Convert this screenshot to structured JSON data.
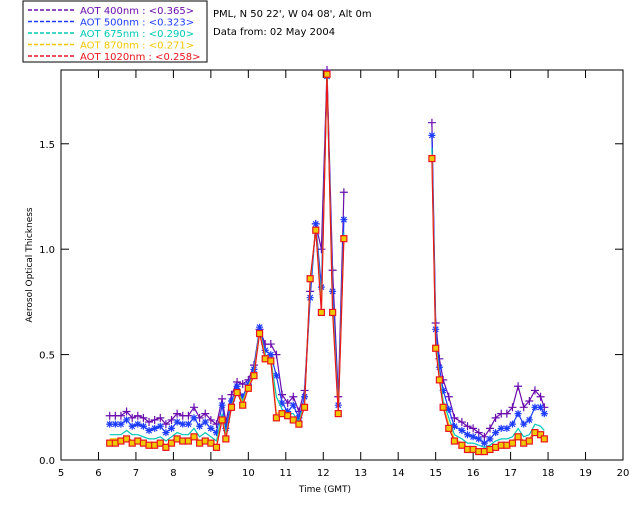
{
  "chart_data": {
    "type": "line",
    "info": {
      "location": "PML, N 50 22', W 04 08', Alt 0m",
      "date": "Data from: 02 May 2004"
    },
    "xlabel": "Time (GMT)",
    "ylabel": "Aerosol Optical Thickness",
    "xlim": [
      5,
      20
    ],
    "ylim": [
      0,
      1.85
    ],
    "xticks": [
      "5",
      "6",
      "7",
      "8",
      "9",
      "10",
      "11",
      "12",
      "13",
      "14",
      "15",
      "16",
      "17",
      "18",
      "19",
      "20"
    ],
    "yticks": [
      "0.0",
      "0.5",
      "1.0",
      "1.5"
    ],
    "legend_position": "top-left, outside plot",
    "series": [
      {
        "name": "AOT  400nm : <0.365>",
        "color": "#6a0dad",
        "marker": "plus",
        "x": [
          6.3,
          6.45,
          6.6,
          6.75,
          6.9,
          7.05,
          7.2,
          7.35,
          7.5,
          7.65,
          7.8,
          7.95,
          8.1,
          8.25,
          8.4,
          8.55,
          8.7,
          8.85,
          9.0,
          9.15,
          9.3,
          9.4,
          9.55,
          9.7,
          9.85,
          10.0,
          10.15,
          10.3,
          10.45,
          10.6,
          10.75,
          10.9,
          11.05,
          11.2,
          11.35,
          11.5,
          11.65,
          11.8,
          11.95,
          12.1,
          12.25,
          12.4,
          12.55,
          14.9,
          15.0,
          15.1,
          15.2,
          15.35,
          15.5,
          15.7,
          15.85,
          16.0,
          16.15,
          16.3,
          16.45,
          16.6,
          16.75,
          16.9,
          17.05,
          17.2,
          17.35,
          17.5,
          17.65,
          17.8,
          17.9
        ],
        "y": [
          0.21,
          0.21,
          0.21,
          0.23,
          0.2,
          0.21,
          0.2,
          0.18,
          0.19,
          0.2,
          0.17,
          0.19,
          0.22,
          0.21,
          0.21,
          0.25,
          0.2,
          0.22,
          0.19,
          0.17,
          0.29,
          0.18,
          0.31,
          0.37,
          0.36,
          0.38,
          0.45,
          0.62,
          0.55,
          0.55,
          0.5,
          0.31,
          0.27,
          0.3,
          0.23,
          0.33,
          0.8,
          1.12,
          1.0,
          1.85,
          0.9,
          0.3,
          1.27,
          1.6,
          0.65,
          0.48,
          0.38,
          0.3,
          0.2,
          0.18,
          0.16,
          0.15,
          0.13,
          0.11,
          0.15,
          0.2,
          0.22,
          0.22,
          0.25,
          0.35,
          0.25,
          0.28,
          0.33,
          0.3,
          0.25
        ]
      },
      {
        "name": "AOT  500nm : <0.323>",
        "color": "#1e3cff",
        "marker": "star",
        "x": [
          6.3,
          6.45,
          6.6,
          6.75,
          6.9,
          7.05,
          7.2,
          7.35,
          7.5,
          7.65,
          7.8,
          7.95,
          8.1,
          8.25,
          8.4,
          8.55,
          8.7,
          8.85,
          9.0,
          9.15,
          9.3,
          9.4,
          9.55,
          9.7,
          9.85,
          10.0,
          10.15,
          10.3,
          10.45,
          10.6,
          10.75,
          10.9,
          11.05,
          11.2,
          11.35,
          11.5,
          11.65,
          11.8,
          11.95,
          12.1,
          12.25,
          12.4,
          12.55,
          14.9,
          15.0,
          15.1,
          15.2,
          15.35,
          15.5,
          15.7,
          15.85,
          16.0,
          16.15,
          16.3,
          16.45,
          16.6,
          16.75,
          16.9,
          17.05,
          17.2,
          17.35,
          17.5,
          17.65,
          17.8,
          17.9
        ],
        "y": [
          0.17,
          0.17,
          0.17,
          0.19,
          0.16,
          0.17,
          0.16,
          0.14,
          0.15,
          0.16,
          0.13,
          0.15,
          0.18,
          0.17,
          0.17,
          0.2,
          0.16,
          0.18,
          0.15,
          0.13,
          0.26,
          0.15,
          0.28,
          0.35,
          0.3,
          0.36,
          0.43,
          0.63,
          0.52,
          0.5,
          0.4,
          0.27,
          0.23,
          0.26,
          0.2,
          0.3,
          0.77,
          1.12,
          0.82,
          1.82,
          0.8,
          0.26,
          1.14,
          1.54,
          0.62,
          0.44,
          0.33,
          0.24,
          0.16,
          0.14,
          0.12,
          0.11,
          0.1,
          0.08,
          0.1,
          0.13,
          0.15,
          0.15,
          0.17,
          0.22,
          0.17,
          0.19,
          0.25,
          0.25,
          0.22
        ]
      },
      {
        "name": "AOT  675nm : <0.290>",
        "color": "#00c8b4",
        "marker": "none",
        "x": [
          6.3,
          6.45,
          6.6,
          6.75,
          6.9,
          7.05,
          7.2,
          7.35,
          7.5,
          7.65,
          7.8,
          7.95,
          8.1,
          8.25,
          8.4,
          8.55,
          8.7,
          8.85,
          9.0,
          9.15,
          9.3,
          9.4,
          9.55,
          9.7,
          9.85,
          10.0,
          10.15,
          10.3,
          10.45,
          10.6,
          10.75,
          10.9,
          11.05,
          11.2,
          11.35,
          11.5,
          11.65,
          11.8,
          11.95,
          12.1,
          12.25,
          12.4,
          12.55,
          14.9,
          15.0,
          15.1,
          15.2,
          15.35,
          15.5,
          15.7,
          15.85,
          16.0,
          16.15,
          16.3,
          16.45,
          16.6,
          16.75,
          16.9,
          17.05,
          17.2,
          17.35,
          17.5,
          17.65,
          17.8,
          17.9
        ],
        "y": [
          0.12,
          0.12,
          0.12,
          0.14,
          0.12,
          0.12,
          0.11,
          0.1,
          0.1,
          0.11,
          0.09,
          0.11,
          0.13,
          0.12,
          0.12,
          0.15,
          0.11,
          0.13,
          0.11,
          0.09,
          0.22,
          0.12,
          0.26,
          0.33,
          0.28,
          0.35,
          0.42,
          0.61,
          0.5,
          0.48,
          0.3,
          0.24,
          0.22,
          0.22,
          0.18,
          0.27,
          0.83,
          1.1,
          0.75,
          1.82,
          0.75,
          0.24,
          1.08,
          1.48,
          0.57,
          0.4,
          0.28,
          0.2,
          0.12,
          0.1,
          0.08,
          0.08,
          0.07,
          0.06,
          0.07,
          0.09,
          0.1,
          0.1,
          0.11,
          0.15,
          0.11,
          0.12,
          0.17,
          0.16,
          0.14
        ]
      },
      {
        "name": "AOT  870nm : <0.271>",
        "color": "#f0c800",
        "marker": "none",
        "x": [
          6.3,
          6.45,
          6.6,
          6.75,
          6.9,
          7.05,
          7.2,
          7.35,
          7.5,
          7.65,
          7.8,
          7.95,
          8.1,
          8.25,
          8.4,
          8.55,
          8.7,
          8.85,
          9.0,
          9.15,
          9.3,
          9.4,
          9.55,
          9.7,
          9.85,
          10.0,
          10.15,
          10.3,
          10.45,
          10.6,
          10.75,
          10.9,
          11.05,
          11.2,
          11.35,
          11.5,
          11.65,
          11.8,
          11.95,
          12.1,
          12.25,
          12.4,
          12.55,
          14.9,
          15.0,
          15.1,
          15.2,
          15.35,
          15.5,
          15.7,
          15.85,
          16.0,
          16.15,
          16.3,
          16.45,
          16.6,
          16.75,
          16.9,
          17.05,
          17.2,
          17.35,
          17.5,
          17.65,
          17.8,
          17.9
        ],
        "y": [
          0.1,
          0.1,
          0.1,
          0.11,
          0.09,
          0.1,
          0.09,
          0.08,
          0.08,
          0.09,
          0.07,
          0.09,
          0.11,
          0.1,
          0.1,
          0.12,
          0.09,
          0.1,
          0.09,
          0.07,
          0.2,
          0.11,
          0.25,
          0.33,
          0.27,
          0.35,
          0.41,
          0.61,
          0.49,
          0.48,
          0.22,
          0.23,
          0.21,
          0.2,
          0.17,
          0.26,
          0.85,
          1.1,
          0.72,
          1.82,
          0.72,
          0.23,
          1.06,
          1.45,
          0.55,
          0.39,
          0.26,
          0.17,
          0.1,
          0.08,
          0.06,
          0.06,
          0.05,
          0.05,
          0.06,
          0.07,
          0.08,
          0.08,
          0.09,
          0.12,
          0.09,
          0.1,
          0.14,
          0.13,
          0.11
        ]
      },
      {
        "name": "AOT 1020nm : <0.258>",
        "color": "#e8141e",
        "marker": "square",
        "x": [
          6.3,
          6.45,
          6.6,
          6.75,
          6.9,
          7.05,
          7.2,
          7.35,
          7.5,
          7.65,
          7.8,
          7.95,
          8.1,
          8.25,
          8.4,
          8.55,
          8.7,
          8.85,
          9.0,
          9.15,
          9.3,
          9.4,
          9.55,
          9.7,
          9.85,
          10.0,
          10.15,
          10.3,
          10.45,
          10.6,
          10.75,
          10.9,
          11.05,
          11.2,
          11.35,
          11.5,
          11.65,
          11.8,
          11.95,
          12.1,
          12.25,
          12.4,
          12.55,
          14.9,
          15.0,
          15.1,
          15.2,
          15.35,
          15.5,
          15.7,
          15.85,
          16.0,
          16.15,
          16.3,
          16.45,
          16.6,
          16.75,
          16.9,
          17.05,
          17.2,
          17.35,
          17.5,
          17.65,
          17.8,
          17.9
        ],
        "y": [
          0.08,
          0.08,
          0.09,
          0.1,
          0.08,
          0.09,
          0.08,
          0.07,
          0.07,
          0.08,
          0.06,
          0.08,
          0.1,
          0.09,
          0.09,
          0.11,
          0.08,
          0.09,
          0.08,
          0.06,
          0.19,
          0.1,
          0.25,
          0.32,
          0.26,
          0.34,
          0.4,
          0.6,
          0.48,
          0.47,
          0.2,
          0.22,
          0.21,
          0.19,
          0.17,
          0.25,
          0.86,
          1.09,
          0.7,
          1.83,
          0.7,
          0.22,
          1.05,
          1.43,
          0.53,
          0.38,
          0.25,
          0.15,
          0.09,
          0.07,
          0.05,
          0.05,
          0.04,
          0.04,
          0.05,
          0.06,
          0.07,
          0.07,
          0.08,
          0.11,
          0.08,
          0.09,
          0.13,
          0.12,
          0.1
        ]
      }
    ]
  }
}
